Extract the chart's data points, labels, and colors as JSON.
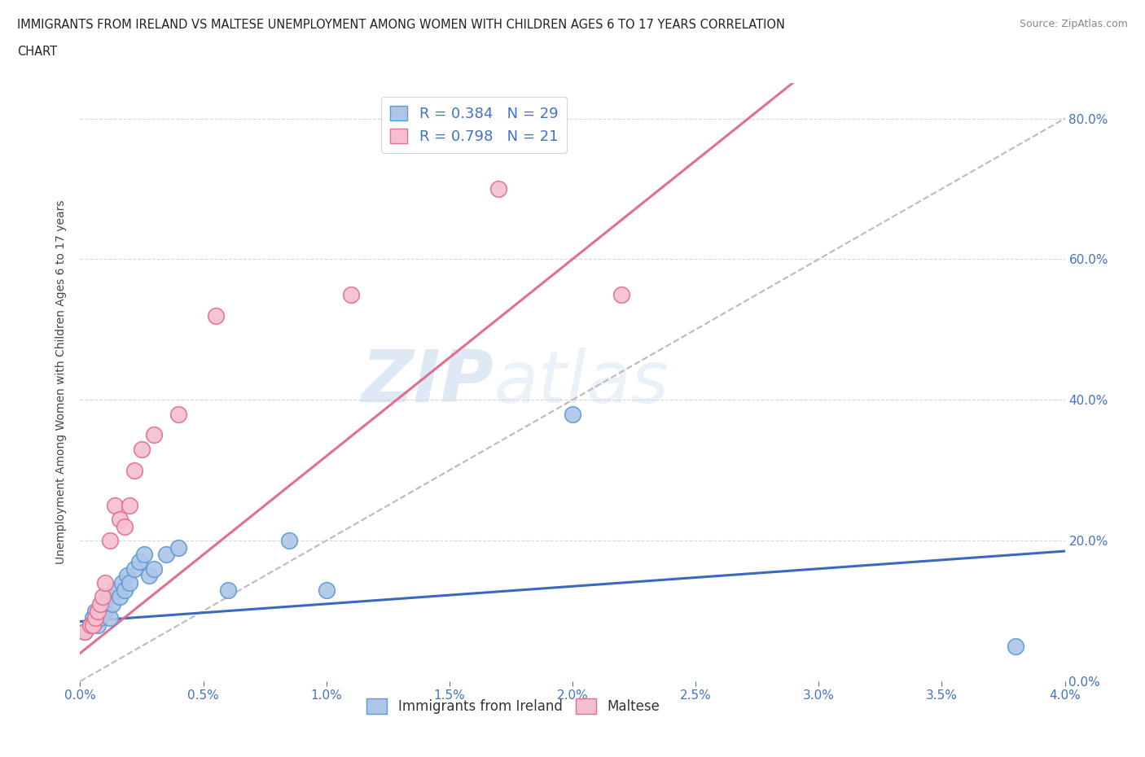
{
  "title_line1": "IMMIGRANTS FROM IRELAND VS MALTESE UNEMPLOYMENT AMONG WOMEN WITH CHILDREN AGES 6 TO 17 YEARS CORRELATION",
  "title_line2": "CHART",
  "source_text": "Source: ZipAtlas.com",
  "xlabel_ticks": [
    "0.0%",
    "0.5%",
    "1.0%",
    "1.5%",
    "2.0%",
    "2.5%",
    "3.0%",
    "3.5%",
    "4.0%"
  ],
  "xlabel_vals": [
    0.0,
    0.5,
    1.0,
    1.5,
    2.0,
    2.5,
    3.0,
    3.5,
    4.0
  ],
  "ylabel_ticks": [
    "0.0%",
    "20.0%",
    "40.0%",
    "60.0%",
    "80.0%"
  ],
  "ylabel_vals": [
    0.0,
    20.0,
    40.0,
    60.0,
    80.0
  ],
  "xlim": [
    0.0,
    4.0
  ],
  "ylim": [
    0.0,
    85.0
  ],
  "ylabel": "Unemployment Among Women with Children Ages 6 to 17 years",
  "watermark_zip": "ZIP",
  "watermark_atlas": "atlas",
  "ireland_color": "#adc6e8",
  "ireland_edge_color": "#5b9bd5",
  "maltese_color": "#f5bfcf",
  "maltese_edge_color": "#e07090",
  "trendline_ireland_color": "#3a6abf",
  "trendline_maltese_color": "#e07090",
  "trendline_ref_color": "#bbbbbb",
  "background_color": "#ffffff",
  "grid_color": "#d8d8d8",
  "legend_text_color": "#4472c4",
  "title_color": "#222222",
  "source_color": "#888888",
  "ylabel_color": "#444444",
  "ireland_x": [
    0.02,
    0.04,
    0.05,
    0.06,
    0.07,
    0.08,
    0.09,
    0.1,
    0.11,
    0.12,
    0.13,
    0.14,
    0.16,
    0.17,
    0.18,
    0.19,
    0.2,
    0.22,
    0.24,
    0.26,
    0.28,
    0.3,
    0.35,
    0.4,
    0.6,
    0.85,
    1.0,
    2.0,
    3.8
  ],
  "ireland_y": [
    7.0,
    8.0,
    9.0,
    10.0,
    8.0,
    9.0,
    11.0,
    10.0,
    12.0,
    9.0,
    11.0,
    13.0,
    12.0,
    14.0,
    13.0,
    15.0,
    14.0,
    16.0,
    17.0,
    18.0,
    15.0,
    16.0,
    18.0,
    19.0,
    13.0,
    20.0,
    13.0,
    38.0,
    5.0
  ],
  "maltese_x": [
    0.02,
    0.04,
    0.05,
    0.06,
    0.07,
    0.08,
    0.09,
    0.1,
    0.12,
    0.14,
    0.16,
    0.18,
    0.2,
    0.22,
    0.25,
    0.3,
    0.4,
    0.55,
    1.1,
    1.7,
    2.2
  ],
  "maltese_y": [
    7.0,
    8.0,
    8.0,
    9.0,
    10.0,
    11.0,
    12.0,
    14.0,
    20.0,
    25.0,
    23.0,
    22.0,
    25.0,
    30.0,
    33.0,
    35.0,
    38.0,
    52.0,
    55.0,
    70.0,
    55.0
  ],
  "trendline_ireland_slope": 2.5,
  "trendline_ireland_intercept": 8.5,
  "trendline_maltese_slope": 28.0,
  "trendline_maltese_intercept": 4.0,
  "ref_line_slope": 20.0,
  "ref_line_intercept": 0.0
}
